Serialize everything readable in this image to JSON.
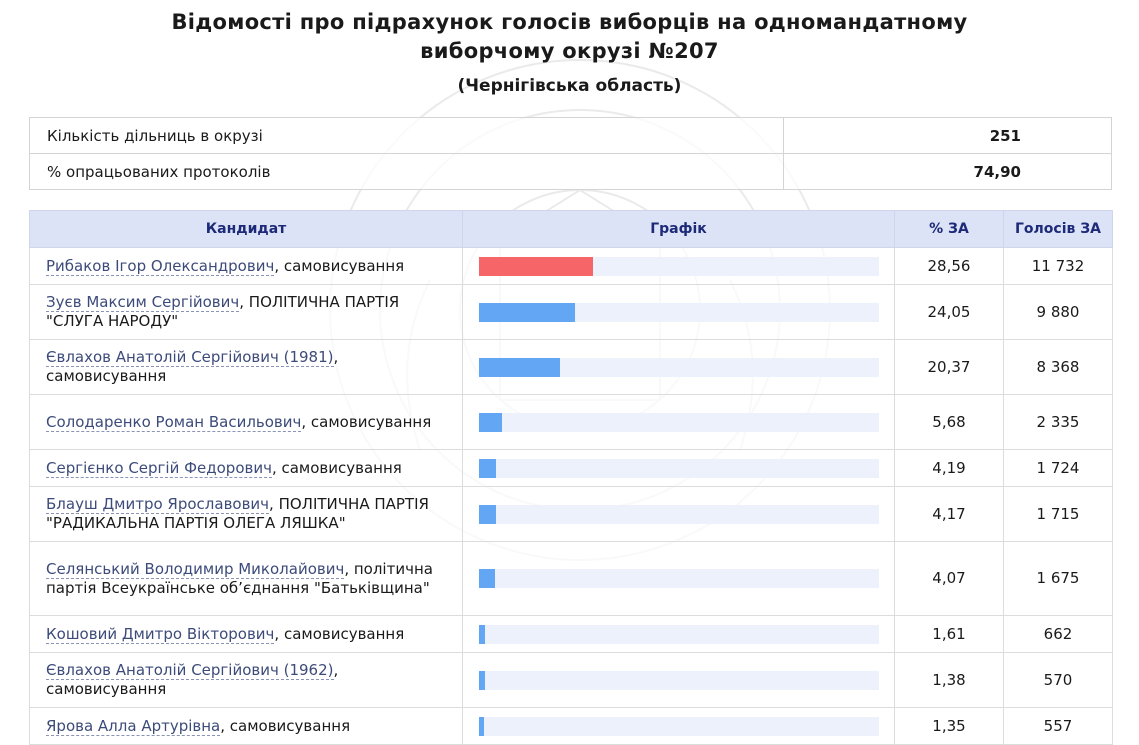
{
  "header": {
    "title_line1": "Відомості про підрахунок голосів виборців на одномандатному",
    "title_line2": "виборчому окрузі №207",
    "region": "(Чернігівська область)"
  },
  "summary": [
    {
      "label": "Кількість дільниць в окрузі",
      "value": "251"
    },
    {
      "label": "% опрацьованих протоколів",
      "value": "74,90"
    }
  ],
  "table": {
    "headers": {
      "candidate": "Кандидат",
      "graph": "Графік",
      "percent": "% ЗА",
      "votes": "Голосів ЗА"
    },
    "rows": [
      {
        "name": "Рибаков Ігор Олександрович",
        "party": ", самовисування",
        "percent": "28,56",
        "votes": "11 732",
        "share": 28.56,
        "leader": true
      },
      {
        "name": "Зуєв Максим Сергійович",
        "party": ", ПОЛІТИЧНА ПАРТІЯ \"СЛУГА НАРОДУ\"",
        "percent": "24,05",
        "votes": "9 880",
        "share": 24.05
      },
      {
        "name": "Євлахов Анатолій Сергійович (1981)",
        "party": ", самовисування",
        "percent": "20,37",
        "votes": "8 368",
        "share": 20.37
      },
      {
        "name": "Солодаренко Роман Васильович",
        "party": ", самовисування",
        "percent": "5,68",
        "votes": "2 335",
        "share": 5.68
      },
      {
        "name": "Сергієнко Сергій Федорович",
        "party": ", самовисування",
        "percent": "4,19",
        "votes": "1 724",
        "share": 4.19
      },
      {
        "name": "Блауш Дмитро Ярославович",
        "party": ", ПОЛІТИЧНА ПАРТІЯ \"РАДИКАЛЬНА ПАРТІЯ ОЛЕГА ЛЯШКА\"",
        "percent": "4,17",
        "votes": "1 715",
        "share": 4.17
      },
      {
        "name": "Селянський Володимир Миколайович",
        "party": ", політична партія Всеукраїнське об’єднання \"Батьківщина\"",
        "percent": "4,07",
        "votes": "1 675",
        "share": 4.07
      },
      {
        "name": "Кошовий Дмитро Вікторович",
        "party": ", самовисування",
        "percent": "1,61",
        "votes": "662",
        "share": 1.61
      },
      {
        "name": "Євлахов Анатолій Сергійович (1962)",
        "party": ", самовисування",
        "percent": "1,38",
        "votes": "570",
        "share": 1.38
      },
      {
        "name": "Ярова Алла Артурівна",
        "party": ", самовисування",
        "percent": "1,35",
        "votes": "557",
        "share": 1.35
      }
    ]
  },
  "colors": {
    "leader_bar": "#f66567",
    "bar": "#63a6f4",
    "track": "#edf1fb",
    "header_bg": "#dde3f7",
    "header_text": "#1d2a78"
  }
}
